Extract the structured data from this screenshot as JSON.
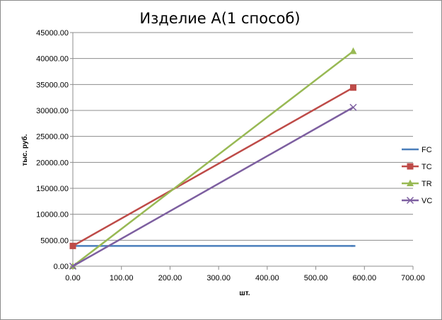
{
  "chart_data": {
    "type": "line",
    "title": "Изделие А(1 способ)",
    "xlabel": "шт.",
    "ylabel": "тыс. руб.",
    "xlim": [
      0,
      700
    ],
    "ylim": [
      0,
      45000
    ],
    "x_ticks": [
      "0.00",
      "100.00",
      "200.00",
      "300.00",
      "400.00",
      "500.00",
      "600.00",
      "700.00"
    ],
    "y_ticks": [
      "0.00",
      "5000.00",
      "10000.00",
      "15000.00",
      "20000.00",
      "25000.00",
      "30000.00",
      "35000.00",
      "40000.00",
      "45000.00"
    ],
    "grid": "horizontal",
    "legend_position": "right",
    "series": [
      {
        "name": "FC",
        "color": "#4a7ebb",
        "marker": "dash",
        "x": [
          0,
          577
        ],
        "y": [
          3900,
          3900
        ]
      },
      {
        "name": "TC",
        "color": "#be4b48",
        "marker": "square",
        "x": [
          0,
          577
        ],
        "y": [
          3900,
          34400
        ]
      },
      {
        "name": "TR",
        "color": "#98b954",
        "marker": "triangle",
        "x": [
          0,
          577
        ],
        "y": [
          0,
          41400
        ]
      },
      {
        "name": "VC",
        "color": "#7d5fa0",
        "marker": "x",
        "x": [
          0,
          577
        ],
        "y": [
          0,
          30600
        ]
      }
    ]
  }
}
